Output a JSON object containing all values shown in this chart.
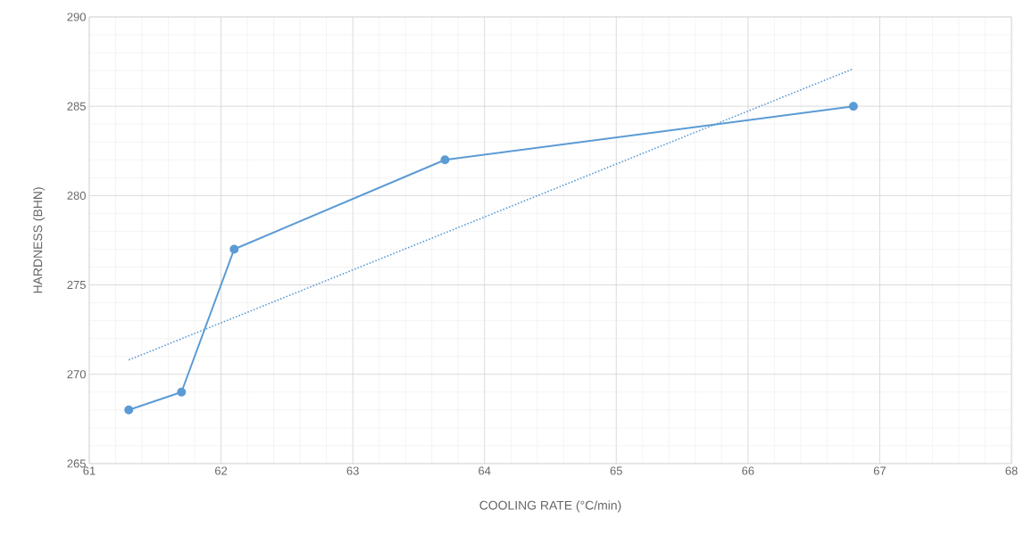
{
  "chart_data": {
    "type": "line",
    "xlabel": "COOLING RATE (°C/min)",
    "ylabel": "HARDNESS  (BHN)",
    "xlim": [
      61,
      68
    ],
    "xticks": [
      61,
      62,
      63,
      64,
      65,
      66,
      67,
      68
    ],
    "ylim": [
      265,
      290
    ],
    "yticks": [
      265,
      270,
      275,
      280,
      285,
      290
    ],
    "grid": true,
    "series": [
      {
        "color": "#5b9bd5",
        "x": [
          61.3,
          61.7,
          62.1,
          63.7,
          66.8
        ],
        "values": [
          268,
          269,
          277,
          282,
          285
        ],
        "marker": "circle",
        "line_style": "solid"
      },
      {
        "type": "line",
        "color": "#5b9bd5",
        "x": [
          61.3,
          66.8
        ],
        "values": [
          270.8,
          287.1
        ],
        "marker": "none",
        "line_style": "dotted"
      }
    ]
  }
}
